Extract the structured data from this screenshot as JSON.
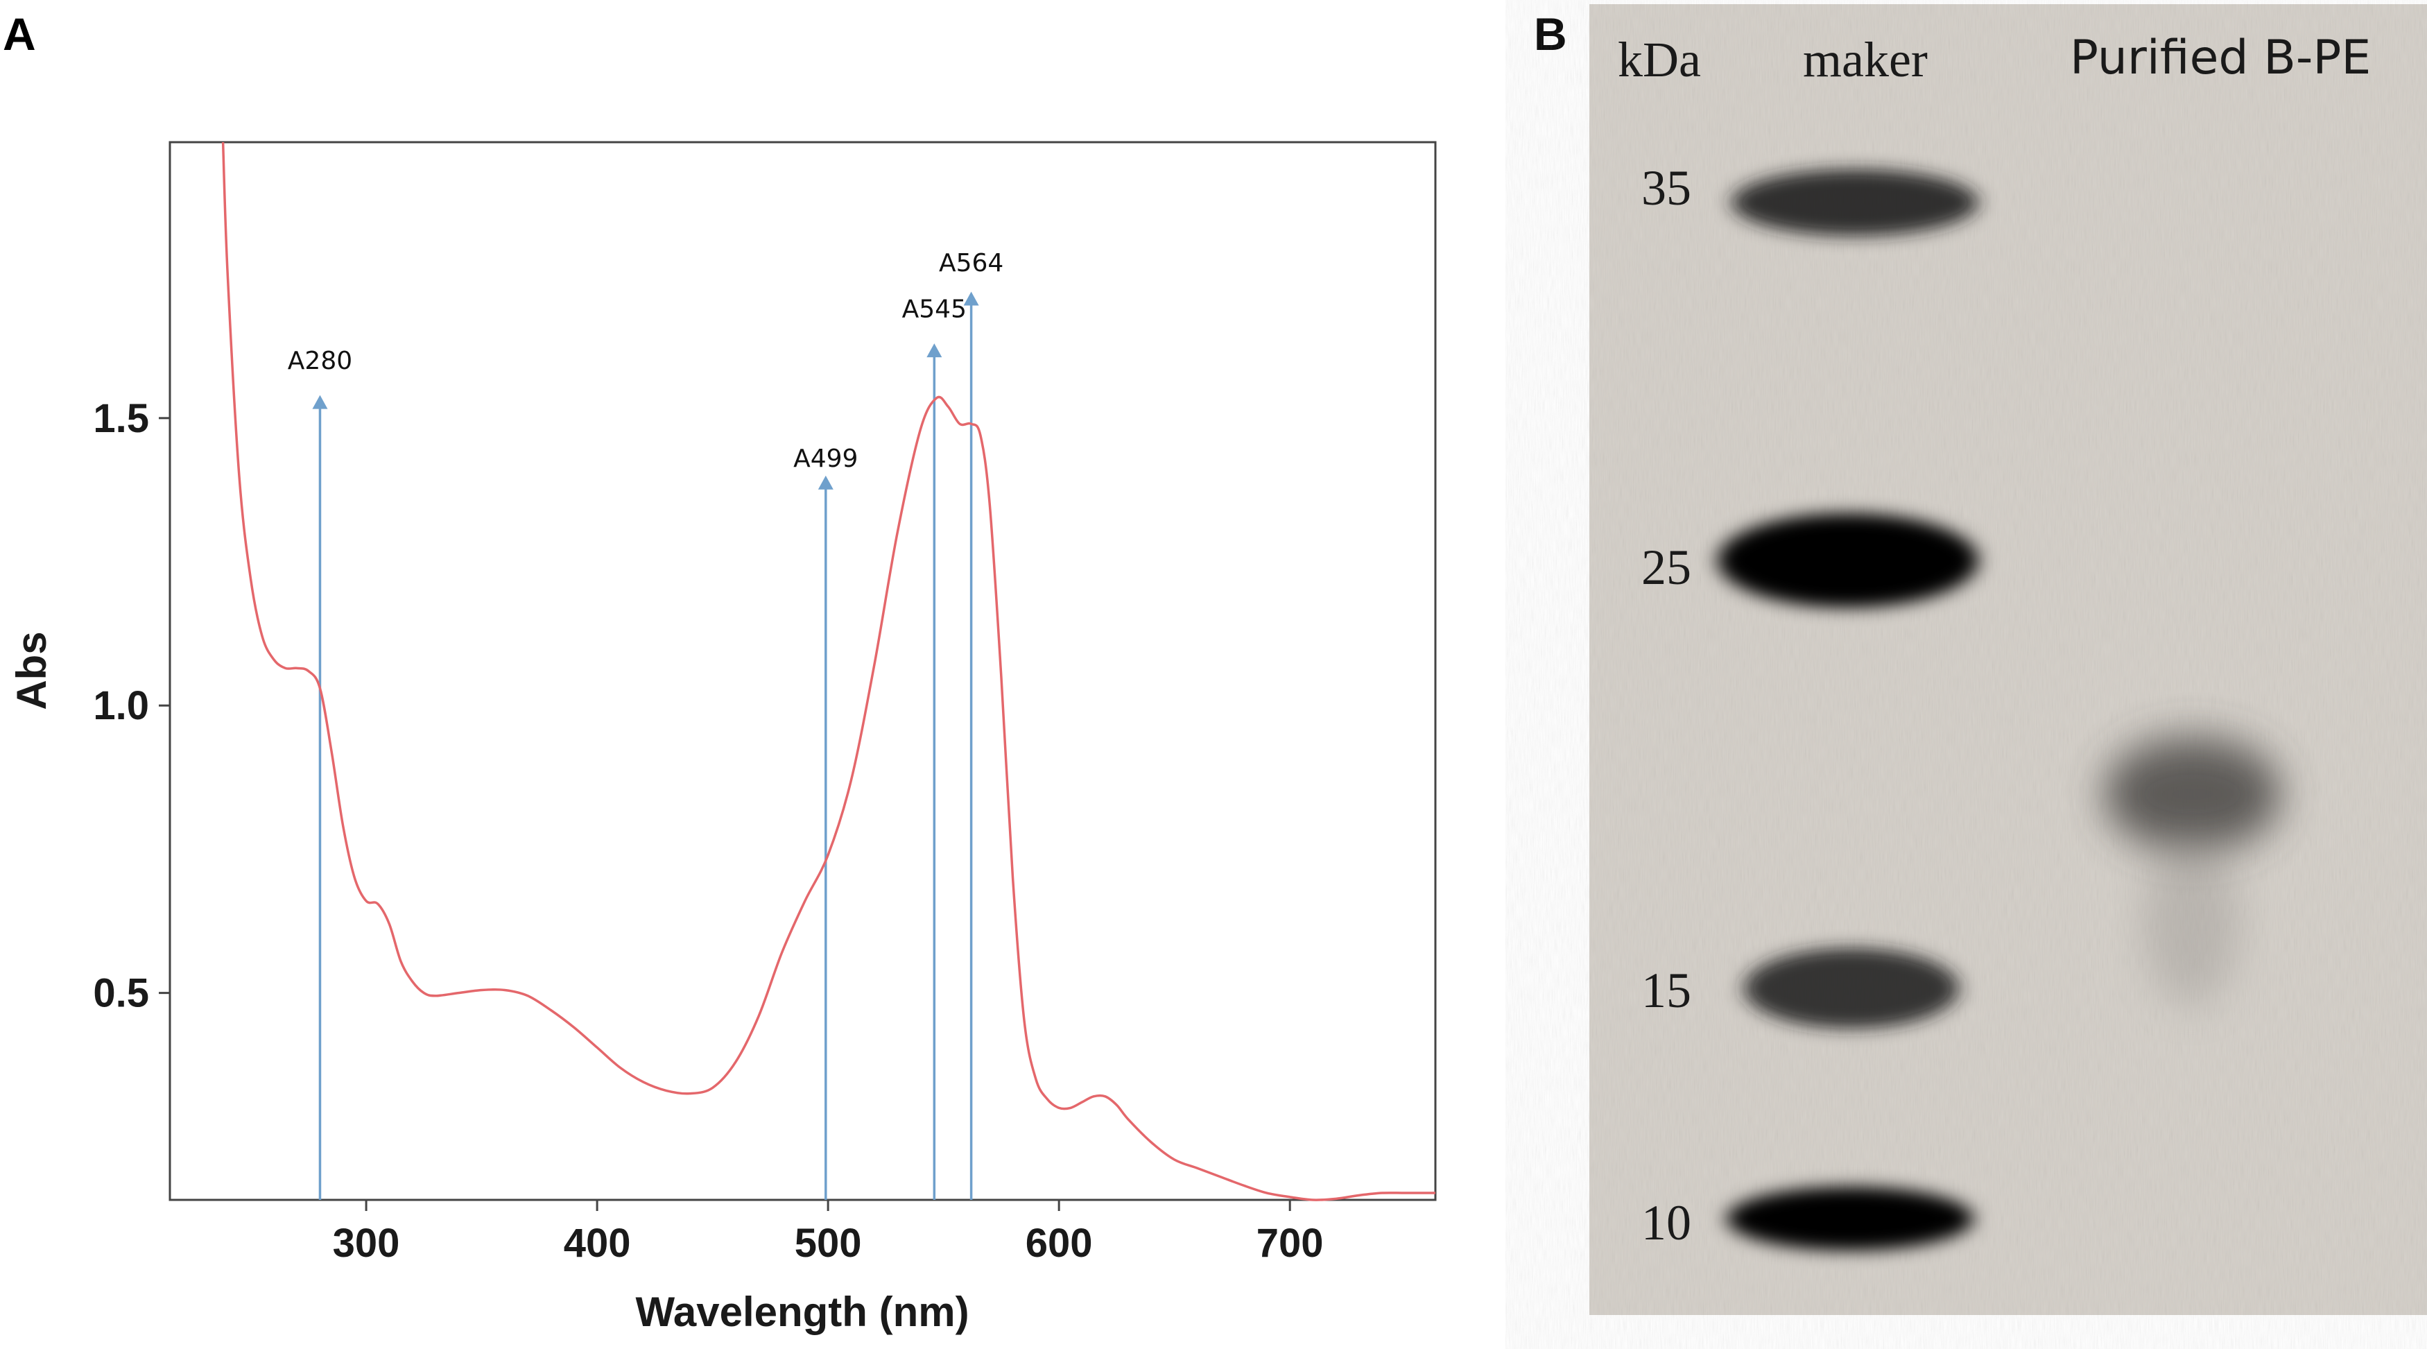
{
  "panel_labels": {
    "a": "A",
    "b": "B"
  },
  "chart_data": [
    {
      "type": "line",
      "panel": "A",
      "xlabel": "Wavelength (nm)",
      "ylabel": "Abs",
      "xlim": [
        215,
        763
      ],
      "ylim": [
        0.14,
        1.98
      ],
      "xticks": [
        300,
        400,
        500,
        600,
        700
      ],
      "yticks": [
        0.5,
        1.0,
        1.5
      ],
      "ytick_labels": [
        "0.5",
        "1.0",
        "1.5"
      ],
      "grid": false,
      "colors": {
        "spectrum": "#e4676b",
        "markers": "#6fa0cc",
        "frame": "#444444"
      },
      "series": [
        {
          "x": [
            238,
            240,
            245,
            250,
            255,
            260,
            265,
            270,
            275,
            280,
            285,
            290,
            295,
            300,
            305,
            310,
            315,
            320,
            325,
            330,
            340,
            350,
            360,
            370,
            380,
            390,
            400,
            410,
            420,
            430,
            440,
            450,
            460,
            470,
            480,
            490,
            500,
            510,
            520,
            530,
            540,
            547,
            552,
            557,
            562,
            566,
            570,
            575,
            580,
            585,
            590,
            595,
            600,
            605,
            610,
            615,
            620,
            625,
            630,
            640,
            650,
            660,
            670,
            680,
            690,
            700,
            710,
            720,
            730,
            740,
            750,
            763
          ],
          "y": [
            1.98,
            1.75,
            1.4,
            1.22,
            1.12,
            1.08,
            1.065,
            1.065,
            1.06,
            1.03,
            0.92,
            0.79,
            0.7,
            0.66,
            0.655,
            0.62,
            0.555,
            0.52,
            0.5,
            0.495,
            0.5,
            0.505,
            0.505,
            0.495,
            0.47,
            0.44,
            0.405,
            0.37,
            0.345,
            0.33,
            0.325,
            0.335,
            0.38,
            0.46,
            0.57,
            0.66,
            0.74,
            0.87,
            1.07,
            1.3,
            1.48,
            1.535,
            1.52,
            1.49,
            1.49,
            1.47,
            1.35,
            1.05,
            0.7,
            0.45,
            0.35,
            0.315,
            0.3,
            0.3,
            0.31,
            0.32,
            0.32,
            0.305,
            0.28,
            0.24,
            0.21,
            0.195,
            0.18,
            0.165,
            0.152,
            0.145,
            0.14,
            0.142,
            0.148,
            0.152,
            0.152,
            0.152
          ]
        }
      ],
      "markers": [
        {
          "label": "A280",
          "x": 280,
          "top": 1.54,
          "label_y": 1.6
        },
        {
          "label": "A499",
          "x": 499,
          "top": 1.4,
          "label_y": 1.43
        },
        {
          "label": "A545",
          "x": 546,
          "top": 1.63,
          "label_y": 1.69
        },
        {
          "label": "A564",
          "x": 562,
          "top": 1.72,
          "label_y": 1.77
        }
      ]
    },
    {
      "type": "table",
      "panel": "B",
      "kda_label": "kDa",
      "lanes": [
        "maker",
        "Purified B-PE"
      ],
      "ladder_kda": [
        "35",
        "25",
        "15",
        "10"
      ],
      "sample_bands_kda": [
        20
      ]
    }
  ]
}
